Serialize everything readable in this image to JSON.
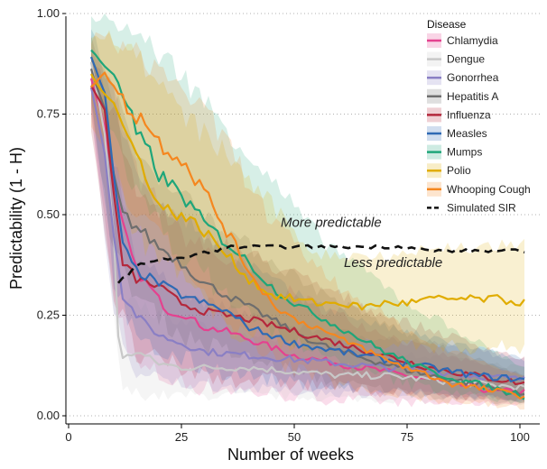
{
  "chart_data": {
    "type": "line",
    "title": "",
    "xlabel": "Number of weeks",
    "ylabel": "Predictability (1 - H)",
    "xlim": [
      0,
      104
    ],
    "ylim": [
      0,
      1
    ],
    "xticks": [
      0,
      25,
      50,
      75,
      100
    ],
    "yticks": [
      "0.00",
      "0.25",
      "0.50",
      "0.75",
      "1.00"
    ],
    "ytick_values": [
      0,
      0.25,
      0.5,
      0.75,
      1.0
    ],
    "grid": "horizontal dotted",
    "legend": {
      "title": "Disease",
      "placement": "top-right"
    },
    "series": [
      {
        "name": "Chlamydia",
        "color": "#e4428f",
        "points": [
          [
            5,
            0.84
          ],
          [
            8,
            0.72
          ],
          [
            10,
            0.58
          ],
          [
            12,
            0.47
          ],
          [
            15,
            0.36
          ],
          [
            18,
            0.32
          ],
          [
            22,
            0.26
          ],
          [
            26,
            0.25
          ],
          [
            30,
            0.22
          ],
          [
            35,
            0.21
          ],
          [
            40,
            0.19
          ],
          [
            45,
            0.17
          ],
          [
            50,
            0.15
          ],
          [
            55,
            0.14
          ],
          [
            60,
            0.13
          ],
          [
            65,
            0.12
          ],
          [
            70,
            0.11
          ],
          [
            75,
            0.1
          ],
          [
            80,
            0.09
          ],
          [
            85,
            0.08
          ],
          [
            90,
            0.07
          ],
          [
            95,
            0.06
          ],
          [
            101,
            0.06
          ]
        ],
        "band": [
          [
            5,
            0.75,
            0.92
          ],
          [
            10,
            0.3,
            0.8
          ],
          [
            15,
            0.12,
            0.6
          ],
          [
            25,
            0.08,
            0.45
          ],
          [
            40,
            0.06,
            0.35
          ],
          [
            60,
            0.04,
            0.25
          ],
          [
            80,
            0.03,
            0.16
          ],
          [
            101,
            0.03,
            0.1
          ]
        ]
      },
      {
        "name": "Dengue",
        "color": "#c8c8c8",
        "points": [
          [
            5,
            0.88
          ],
          [
            8,
            0.7
          ],
          [
            10,
            0.45
          ],
          [
            11,
            0.2
          ],
          [
            12,
            0.14
          ],
          [
            15,
            0.16
          ],
          [
            20,
            0.13
          ],
          [
            25,
            0.12
          ],
          [
            30,
            0.12
          ],
          [
            40,
            0.12
          ],
          [
            50,
            0.11
          ],
          [
            60,
            0.1
          ],
          [
            70,
            0.1
          ],
          [
            80,
            0.09
          ],
          [
            90,
            0.08
          ],
          [
            101,
            0.07
          ]
        ],
        "band": [
          [
            5,
            0.8,
            0.95
          ],
          [
            10,
            0.25,
            0.6
          ],
          [
            12,
            0.06,
            0.3
          ],
          [
            20,
            0.05,
            0.25
          ],
          [
            40,
            0.05,
            0.2
          ],
          [
            70,
            0.04,
            0.16
          ],
          [
            101,
            0.03,
            0.12
          ]
        ]
      },
      {
        "name": "Gonorrhea",
        "color": "#8a7fc4",
        "points": [
          [
            5,
            0.82
          ],
          [
            8,
            0.65
          ],
          [
            10,
            0.45
          ],
          [
            12,
            0.3
          ],
          [
            15,
            0.25
          ],
          [
            20,
            0.2
          ],
          [
            25,
            0.18
          ],
          [
            30,
            0.16
          ],
          [
            40,
            0.15
          ],
          [
            50,
            0.14
          ],
          [
            60,
            0.13
          ],
          [
            70,
            0.12
          ],
          [
            80,
            0.11
          ],
          [
            90,
            0.1
          ],
          [
            101,
            0.09
          ]
        ],
        "band": [
          [
            5,
            0.75,
            0.9
          ],
          [
            10,
            0.25,
            0.65
          ],
          [
            15,
            0.1,
            0.4
          ],
          [
            25,
            0.08,
            0.3
          ],
          [
            50,
            0.06,
            0.22
          ],
          [
            80,
            0.05,
            0.18
          ],
          [
            101,
            0.04,
            0.14
          ]
        ]
      },
      {
        "name": "Hepatitis A",
        "color": "#6e6e6e",
        "points": [
          [
            5,
            0.86
          ],
          [
            8,
            0.76
          ],
          [
            10,
            0.6
          ],
          [
            12,
            0.5
          ],
          [
            15,
            0.47
          ],
          [
            20,
            0.42
          ],
          [
            25,
            0.38
          ],
          [
            30,
            0.33
          ],
          [
            35,
            0.3
          ],
          [
            40,
            0.27
          ],
          [
            45,
            0.24
          ],
          [
            50,
            0.21
          ],
          [
            55,
            0.18
          ],
          [
            60,
            0.16
          ],
          [
            70,
            0.13
          ],
          [
            80,
            0.1
          ],
          [
            90,
            0.08
          ],
          [
            101,
            0.05
          ]
        ],
        "band": [
          [
            5,
            0.78,
            0.95
          ],
          [
            10,
            0.4,
            0.8
          ],
          [
            15,
            0.3,
            0.65
          ],
          [
            25,
            0.2,
            0.55
          ],
          [
            40,
            0.14,
            0.42
          ],
          [
            60,
            0.08,
            0.28
          ],
          [
            80,
            0.05,
            0.18
          ],
          [
            101,
            0.03,
            0.1
          ]
        ]
      },
      {
        "name": "Influenza",
        "color": "#b4283c",
        "points": [
          [
            5,
            0.82
          ],
          [
            8,
            0.76
          ],
          [
            10,
            0.55
          ],
          [
            12,
            0.38
          ],
          [
            15,
            0.34
          ],
          [
            20,
            0.32
          ],
          [
            25,
            0.28
          ],
          [
            30,
            0.26
          ],
          [
            35,
            0.25
          ],
          [
            40,
            0.24
          ],
          [
            50,
            0.21
          ],
          [
            60,
            0.18
          ],
          [
            70,
            0.15
          ],
          [
            80,
            0.12
          ],
          [
            90,
            0.1
          ],
          [
            101,
            0.08
          ]
        ],
        "band": [
          [
            5,
            0.72,
            0.9
          ],
          [
            10,
            0.3,
            0.75
          ],
          [
            15,
            0.15,
            0.55
          ],
          [
            30,
            0.1,
            0.45
          ],
          [
            50,
            0.08,
            0.35
          ],
          [
            70,
            0.06,
            0.25
          ],
          [
            101,
            0.04,
            0.14
          ]
        ]
      },
      {
        "name": "Measles",
        "color": "#2f6ab4",
        "points": [
          [
            5,
            0.89
          ],
          [
            8,
            0.8
          ],
          [
            10,
            0.6
          ],
          [
            12,
            0.42
          ],
          [
            15,
            0.36
          ],
          [
            20,
            0.33
          ],
          [
            25,
            0.3
          ],
          [
            30,
            0.28
          ],
          [
            35,
            0.26
          ],
          [
            40,
            0.22
          ],
          [
            45,
            0.2
          ],
          [
            50,
            0.18
          ],
          [
            55,
            0.17
          ],
          [
            60,
            0.16
          ],
          [
            70,
            0.14
          ],
          [
            80,
            0.12
          ],
          [
            90,
            0.1
          ],
          [
            101,
            0.09
          ]
        ],
        "band": [
          [
            5,
            0.8,
            0.96
          ],
          [
            10,
            0.35,
            0.8
          ],
          [
            15,
            0.18,
            0.58
          ],
          [
            30,
            0.12,
            0.45
          ],
          [
            50,
            0.08,
            0.3
          ],
          [
            70,
            0.06,
            0.22
          ],
          [
            101,
            0.04,
            0.14
          ]
        ]
      },
      {
        "name": "Mumps",
        "color": "#1fa67a",
        "points": [
          [
            5,
            0.91
          ],
          [
            8,
            0.87
          ],
          [
            10,
            0.85
          ],
          [
            12,
            0.8
          ],
          [
            15,
            0.7
          ],
          [
            18,
            0.65
          ],
          [
            20,
            0.6
          ],
          [
            25,
            0.55
          ],
          [
            30,
            0.48
          ],
          [
            35,
            0.43
          ],
          [
            40,
            0.38
          ],
          [
            45,
            0.32
          ],
          [
            50,
            0.28
          ],
          [
            55,
            0.25
          ],
          [
            60,
            0.22
          ],
          [
            70,
            0.16
          ],
          [
            80,
            0.11
          ],
          [
            90,
            0.08
          ],
          [
            101,
            0.05
          ]
        ],
        "band": [
          [
            5,
            0.85,
            0.99
          ],
          [
            10,
            0.7,
            0.98
          ],
          [
            15,
            0.55,
            0.95
          ],
          [
            25,
            0.4,
            0.85
          ],
          [
            40,
            0.25,
            0.65
          ],
          [
            55,
            0.15,
            0.45
          ],
          [
            75,
            0.08,
            0.28
          ],
          [
            101,
            0.03,
            0.12
          ]
        ]
      },
      {
        "name": "Polio",
        "color": "#e0ac00",
        "points": [
          [
            5,
            0.85
          ],
          [
            8,
            0.8
          ],
          [
            10,
            0.78
          ],
          [
            12,
            0.72
          ],
          [
            15,
            0.65
          ],
          [
            18,
            0.58
          ],
          [
            20,
            0.52
          ],
          [
            25,
            0.5
          ],
          [
            30,
            0.46
          ],
          [
            35,
            0.4
          ],
          [
            40,
            0.34
          ],
          [
            45,
            0.3
          ],
          [
            50,
            0.29
          ],
          [
            55,
            0.28
          ],
          [
            60,
            0.28
          ],
          [
            65,
            0.27
          ],
          [
            70,
            0.28
          ],
          [
            75,
            0.28
          ],
          [
            80,
            0.29
          ],
          [
            85,
            0.29
          ],
          [
            90,
            0.29
          ],
          [
            95,
            0.29
          ],
          [
            101,
            0.28
          ]
        ],
        "band": [
          [
            5,
            0.78,
            0.95
          ],
          [
            10,
            0.62,
            0.94
          ],
          [
            15,
            0.45,
            0.9
          ],
          [
            25,
            0.35,
            0.75
          ],
          [
            35,
            0.22,
            0.65
          ],
          [
            45,
            0.18,
            0.52
          ],
          [
            55,
            0.18,
            0.4
          ],
          [
            70,
            0.18,
            0.4
          ],
          [
            85,
            0.17,
            0.42
          ],
          [
            101,
            0.17,
            0.42
          ]
        ]
      },
      {
        "name": "Whooping Cough",
        "color": "#f5871f",
        "points": [
          [
            5,
            0.82
          ],
          [
            8,
            0.85
          ],
          [
            10,
            0.82
          ],
          [
            12,
            0.78
          ],
          [
            15,
            0.75
          ],
          [
            18,
            0.72
          ],
          [
            20,
            0.68
          ],
          [
            25,
            0.64
          ],
          [
            30,
            0.56
          ],
          [
            35,
            0.46
          ],
          [
            40,
            0.36
          ],
          [
            45,
            0.28
          ],
          [
            50,
            0.24
          ],
          [
            55,
            0.22
          ],
          [
            60,
            0.19
          ],
          [
            65,
            0.17
          ],
          [
            70,
            0.14
          ],
          [
            75,
            0.12
          ],
          [
            80,
            0.1
          ],
          [
            85,
            0.08
          ],
          [
            90,
            0.07
          ],
          [
            95,
            0.06
          ],
          [
            101,
            0.05
          ]
        ],
        "band": [
          [
            5,
            0.72,
            0.94
          ],
          [
            10,
            0.6,
            0.93
          ],
          [
            15,
            0.5,
            0.9
          ],
          [
            25,
            0.38,
            0.82
          ],
          [
            35,
            0.22,
            0.68
          ],
          [
            45,
            0.14,
            0.48
          ],
          [
            60,
            0.08,
            0.32
          ],
          [
            80,
            0.04,
            0.18
          ],
          [
            101,
            0.02,
            0.1
          ]
        ]
      },
      {
        "name": "Simulated SIR",
        "color": "#111111",
        "dashed": true,
        "points": [
          [
            11,
            0.33
          ],
          [
            13,
            0.35
          ],
          [
            15,
            0.37
          ],
          [
            17,
            0.38
          ],
          [
            20,
            0.39
          ],
          [
            25,
            0.39
          ],
          [
            28,
            0.4
          ],
          [
            32,
            0.41
          ],
          [
            36,
            0.42
          ],
          [
            40,
            0.42
          ],
          [
            45,
            0.42
          ],
          [
            50,
            0.42
          ],
          [
            55,
            0.42
          ],
          [
            60,
            0.42
          ],
          [
            65,
            0.42
          ],
          [
            70,
            0.42
          ],
          [
            75,
            0.42
          ],
          [
            80,
            0.41
          ],
          [
            85,
            0.41
          ],
          [
            90,
            0.41
          ],
          [
            95,
            0.41
          ],
          [
            101,
            0.41
          ]
        ]
      }
    ],
    "annotations": [
      {
        "text": "More predictable",
        "x": 47,
        "y": 0.47
      },
      {
        "text": "Less predictable",
        "x": 61,
        "y": 0.37
      }
    ]
  }
}
